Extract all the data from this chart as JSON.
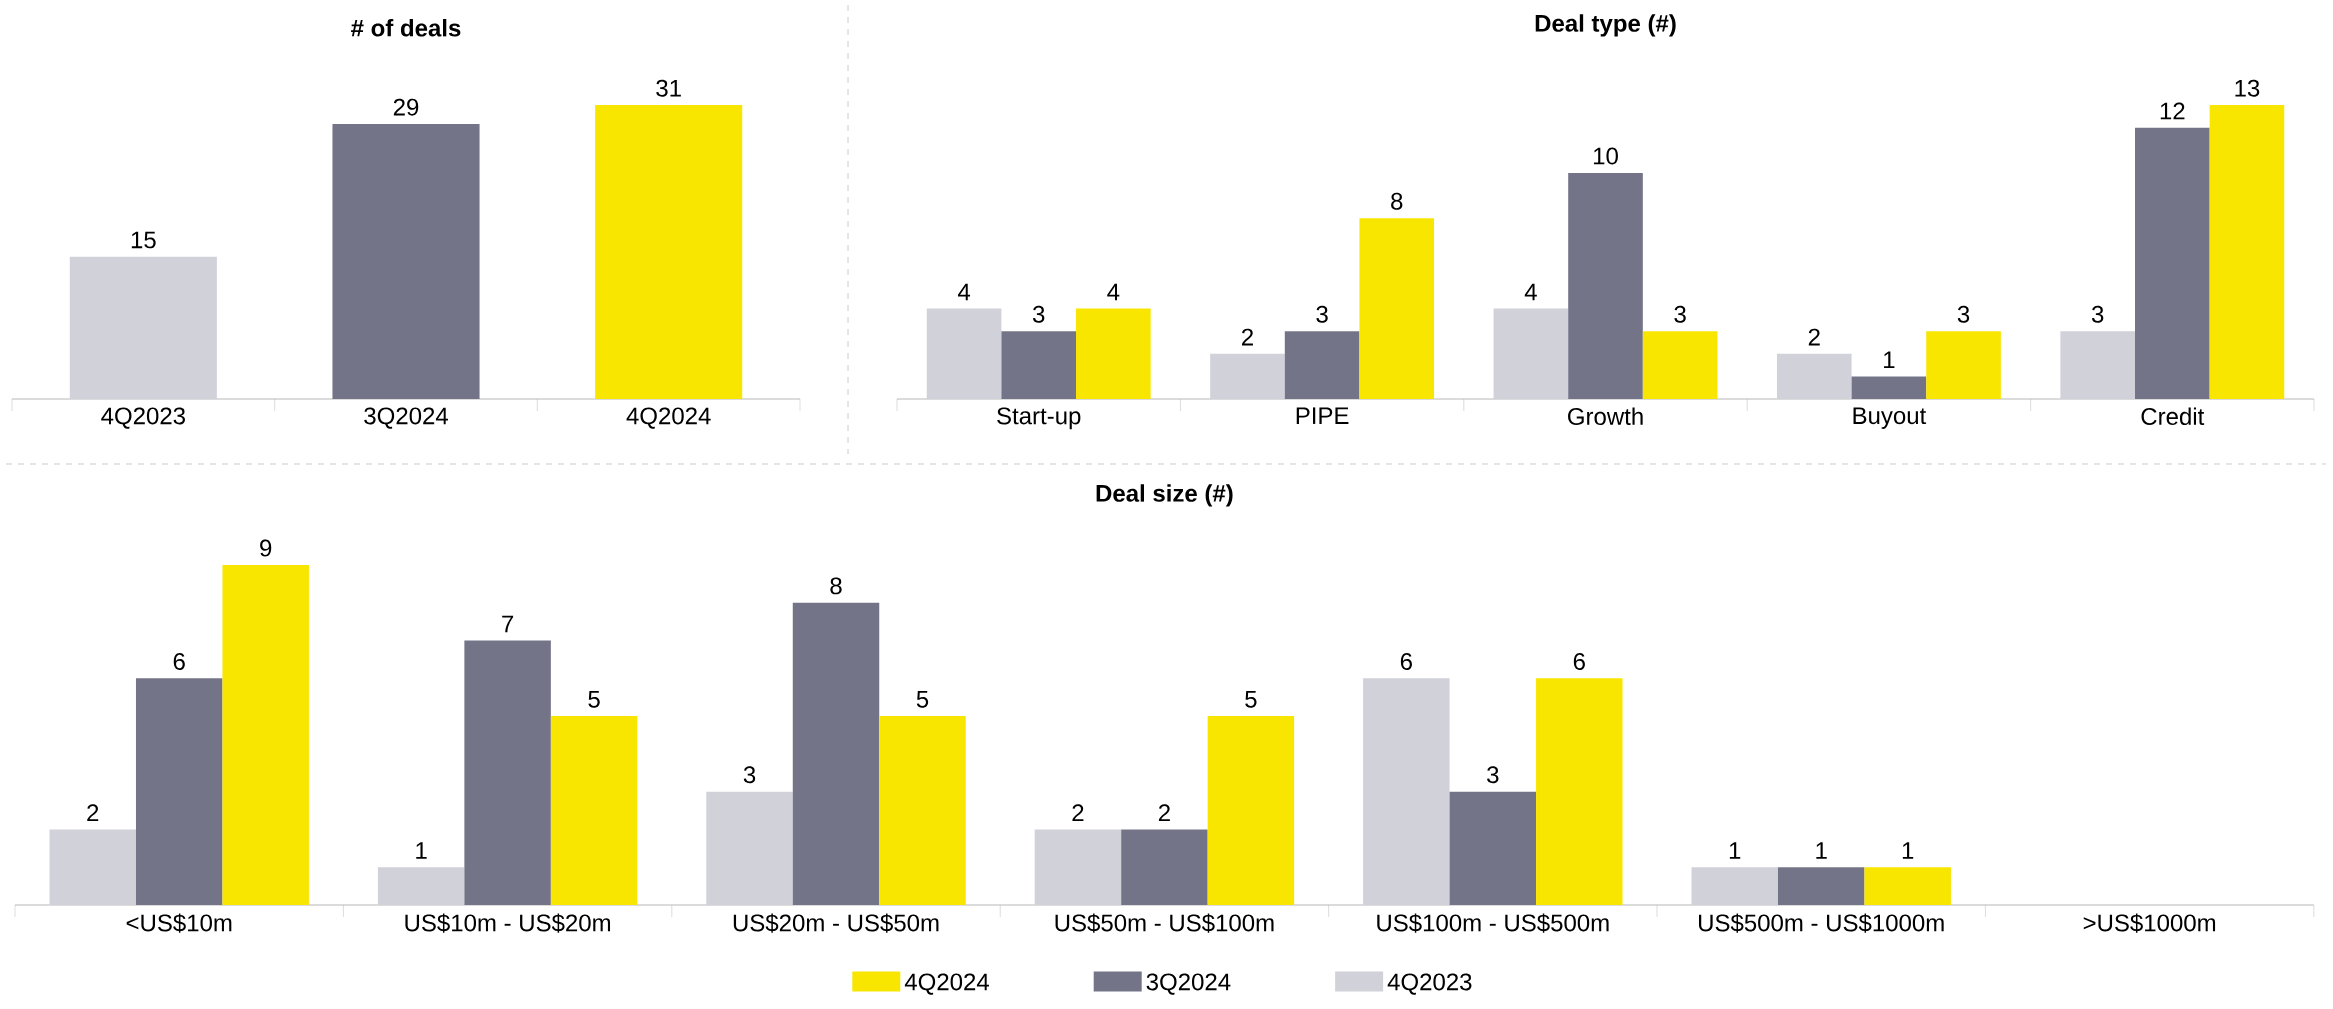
{
  "chart_data": [
    {
      "type": "bar",
      "title": "# of deals",
      "categories": [
        "4Q2023",
        "3Q2024",
        "4Q2024"
      ],
      "values": [
        15,
        29,
        31
      ],
      "colors": [
        "#d1d1da",
        "#747489",
        "#f9e600"
      ],
      "data_labels": true
    },
    {
      "type": "bar",
      "title": "Deal type (#)",
      "categories": [
        "Start-up",
        "PIPE",
        "Growth",
        "Buyout",
        "Credit"
      ],
      "series": [
        {
          "color": "#d1d1da",
          "values": [
            4,
            2,
            4,
            2,
            3
          ]
        },
        {
          "color": "#747489",
          "values": [
            3,
            3,
            10,
            1,
            12
          ]
        },
        {
          "color": "#f9e600",
          "values": [
            4,
            8,
            3,
            3,
            13
          ]
        }
      ],
      "data_labels": true
    },
    {
      "type": "bar",
      "title": "Deal size (#)",
      "categories": [
        "<US$10m",
        "US$10m - US$20m",
        "US$20m - US$50m",
        "US$50m - US$100m",
        "US$100m - US$500m",
        "US$500m - US$1000m",
        ">US$1000m"
      ],
      "series": [
        {
          "name": "4Q2023",
          "color": "#d1d1da",
          "values": [
            2,
            1,
            3,
            2,
            6,
            1,
            null
          ]
        },
        {
          "name": "3Q2024",
          "color": "#747489",
          "values": [
            6,
            7,
            8,
            2,
            3,
            1,
            null
          ]
        },
        {
          "name": "4Q2024",
          "color": "#f9e600",
          "values": [
            9,
            5,
            5,
            5,
            6,
            1,
            null
          ]
        }
      ],
      "data_labels": true,
      "legend": "bottom"
    }
  ]
}
